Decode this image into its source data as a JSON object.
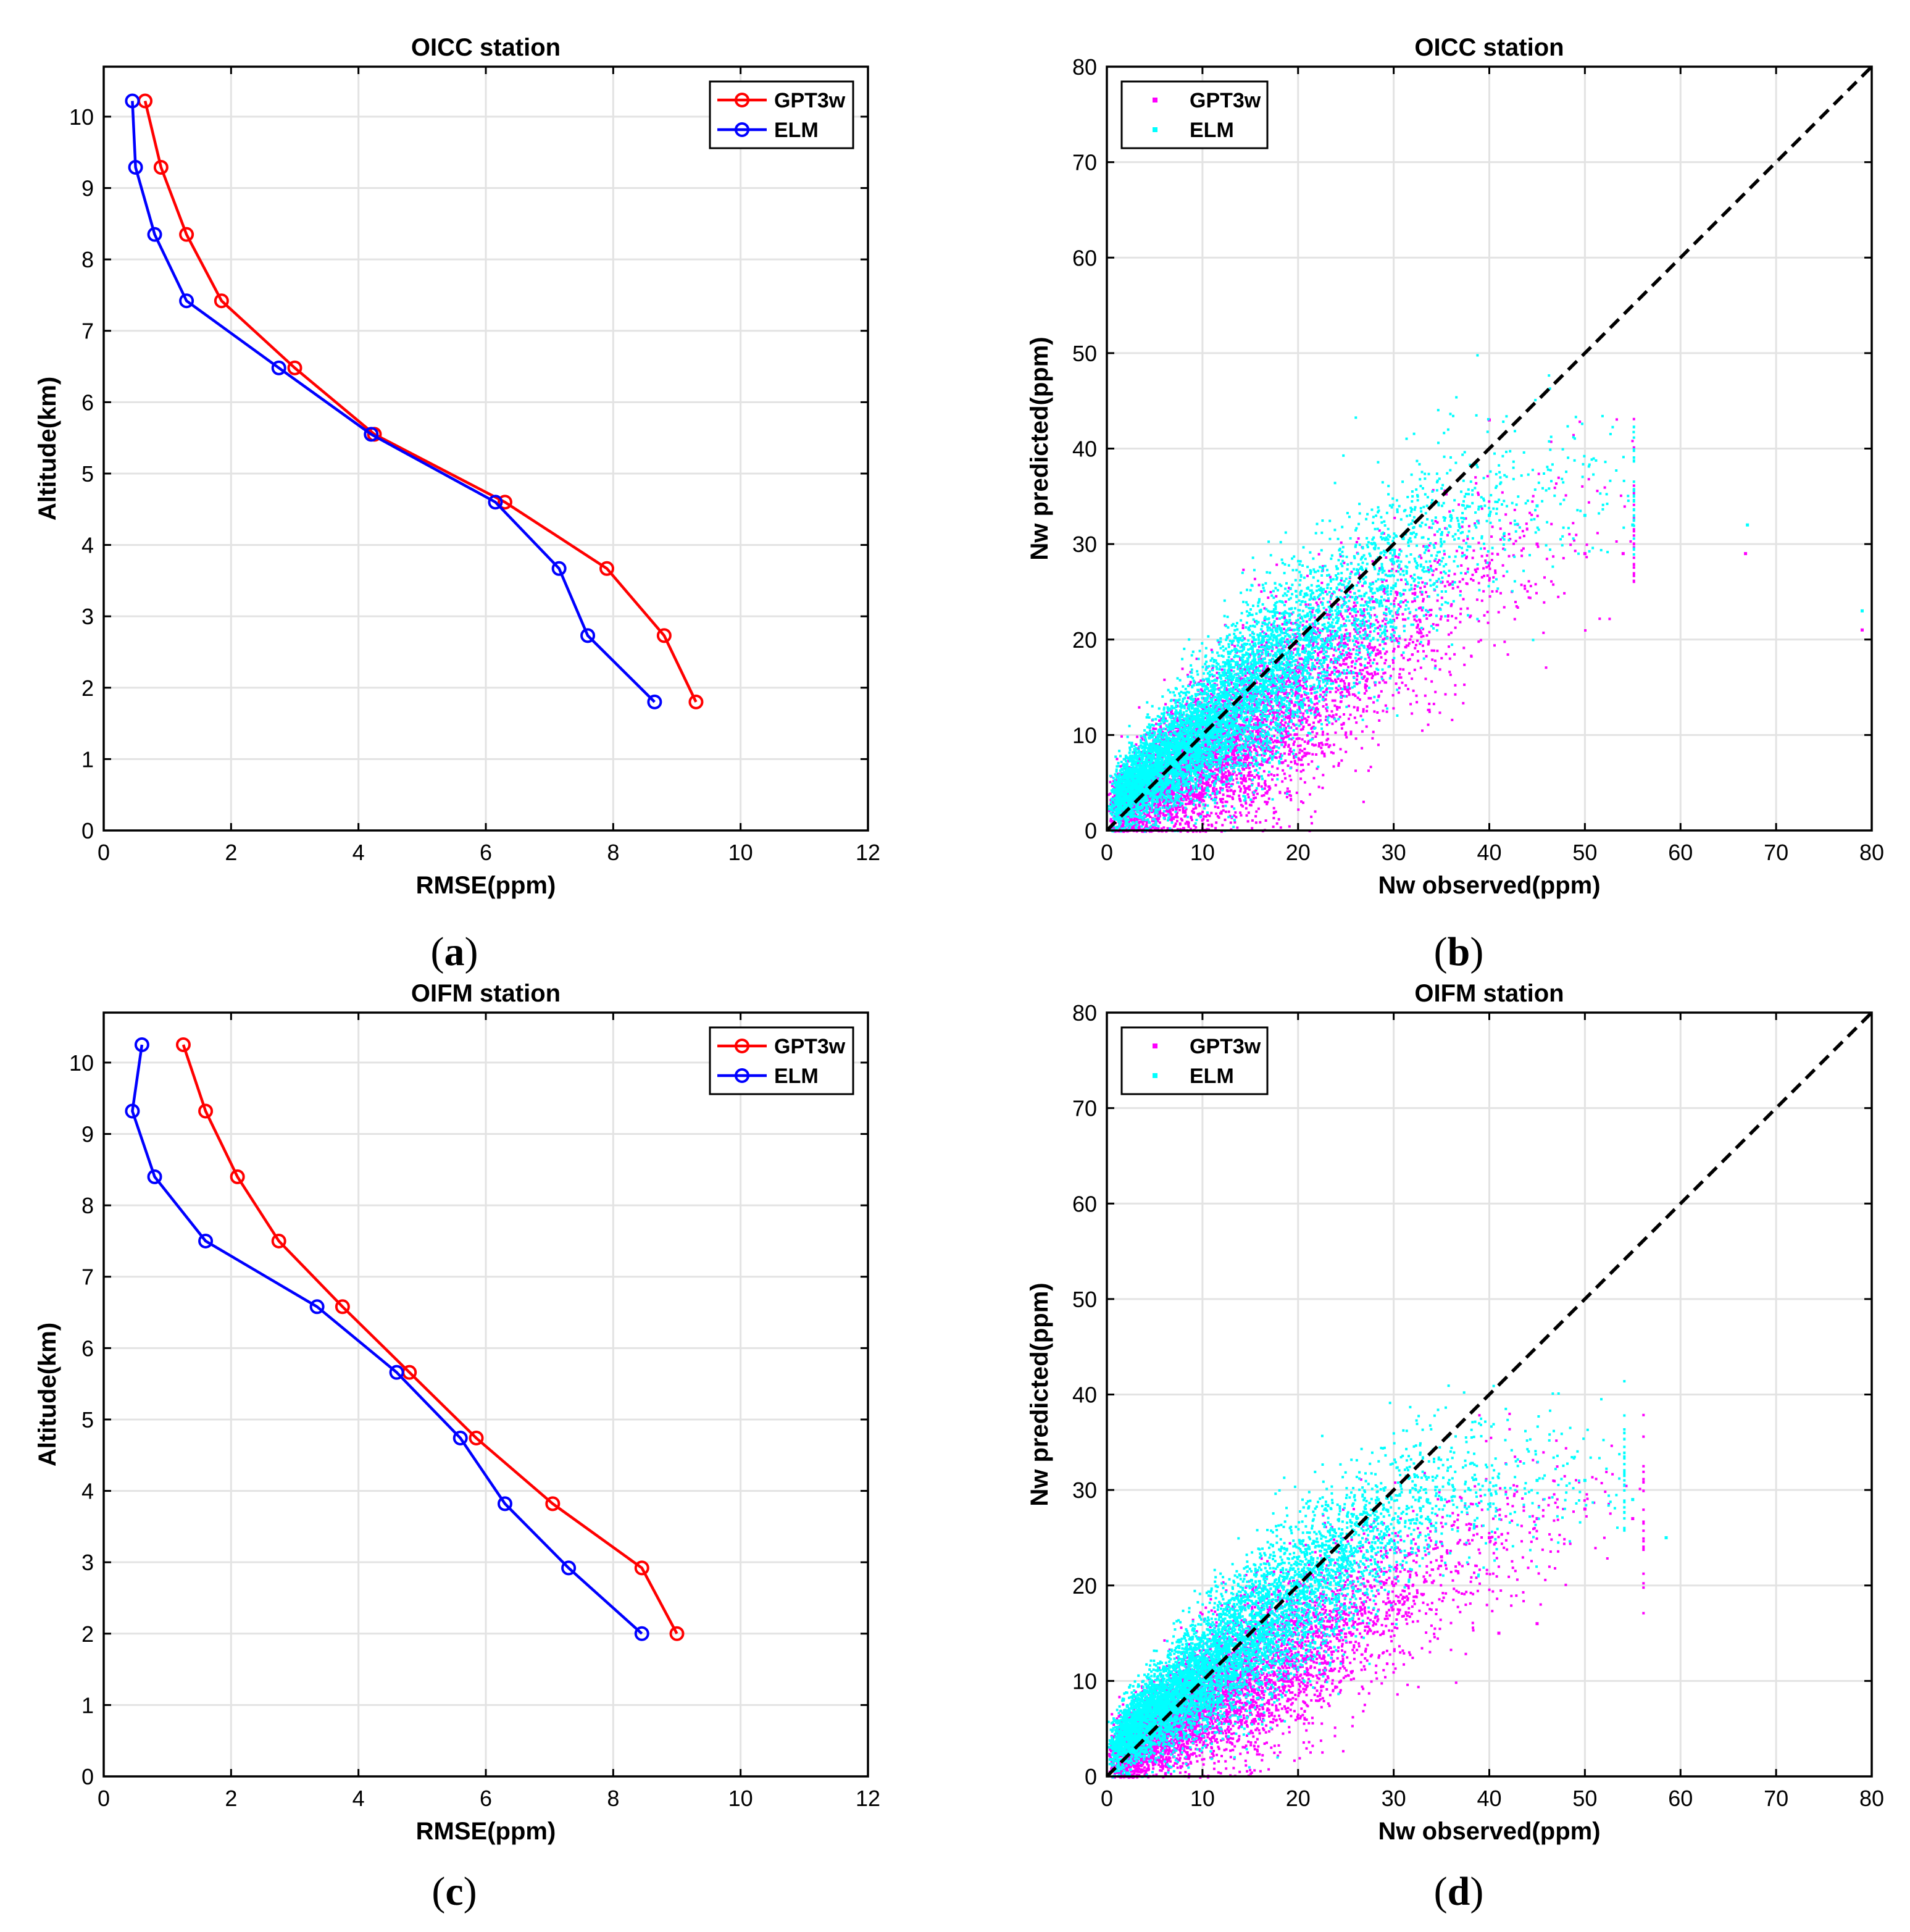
{
  "colors": {
    "gpt3w": "#ff0000",
    "elm": "#0000ff",
    "gpt3w_scatter": "#ff00ff",
    "elm_scatter": "#00ffff",
    "grid": "#e3e3e3",
    "axis": "#000000",
    "diagonal": "#000000"
  },
  "chart_data": [
    {
      "id": "a",
      "panel_label": "(a)",
      "panel_letter": "a",
      "type": "line",
      "title": "OICC station",
      "xlabel": "RMSE(ppm)",
      "ylabel": "Altitude(km)",
      "xlim": [
        0,
        12
      ],
      "ylim": [
        0,
        10.7
      ],
      "xticks": [
        0,
        2,
        4,
        6,
        8,
        10,
        12
      ],
      "yticks": [
        0,
        1,
        2,
        3,
        4,
        5,
        6,
        7,
        8,
        9,
        10
      ],
      "grid": true,
      "legend_position": "top-right",
      "series": [
        {
          "name": "GPT3w",
          "marker": "circle",
          "points": [
            [
              0.65,
              10.22
            ],
            [
              0.9,
              9.29
            ],
            [
              1.3,
              8.35
            ],
            [
              1.85,
              7.42
            ],
            [
              3.0,
              6.48
            ],
            [
              4.25,
              5.55
            ],
            [
              6.3,
              4.6
            ],
            [
              7.9,
              3.67
            ],
            [
              8.8,
              2.73
            ],
            [
              9.3,
              1.8
            ]
          ]
        },
        {
          "name": "ELM",
          "marker": "circle",
          "points": [
            [
              0.45,
              10.22
            ],
            [
              0.5,
              9.29
            ],
            [
              0.8,
              8.35
            ],
            [
              1.3,
              7.42
            ],
            [
              2.75,
              6.48
            ],
            [
              4.2,
              5.55
            ],
            [
              6.15,
              4.6
            ],
            [
              7.15,
              3.67
            ],
            [
              7.6,
              2.73
            ],
            [
              8.65,
              1.8
            ]
          ]
        }
      ]
    },
    {
      "id": "b",
      "panel_label": "(b)",
      "panel_letter": "b",
      "type": "scatter",
      "title": "OICC station",
      "xlabel": "Nw observed(ppm)",
      "ylabel": "Nw predicted(ppm)",
      "xlim": [
        0,
        80
      ],
      "ylim": [
        0,
        80
      ],
      "xticks": [
        0,
        10,
        20,
        30,
        40,
        50,
        60,
        70,
        80
      ],
      "yticks": [
        0,
        10,
        20,
        30,
        40,
        50,
        60,
        70,
        80
      ],
      "grid": true,
      "legend_position": "top-left",
      "reference_line": "1:1 dashed",
      "series": [
        {
          "name": "GPT3w",
          "description": "dense cloud, roughly y = 0.65x + 2, saturating near 30-33 ppm above x = 40",
          "sample_points": [
            [
              5,
              5
            ],
            [
              10,
              8
            ],
            [
              15,
              11
            ],
            [
              20,
              15
            ],
            [
              25,
              18
            ],
            [
              30,
              22
            ],
            [
              35,
              26
            ],
            [
              40,
              28
            ],
            [
              45,
              30
            ],
            [
              50,
              29
            ],
            [
              54,
              29
            ],
            [
              66.8,
              29
            ],
            [
              79,
              21
            ],
            [
              40,
              43
            ]
          ]
        },
        {
          "name": "ELM",
          "description": "dense cloud, roughly y = 0.8x + 2, saturating near 33-37 ppm above x = 40",
          "sample_points": [
            [
              5,
              6
            ],
            [
              10,
              10
            ],
            [
              15,
              14
            ],
            [
              20,
              19
            ],
            [
              25,
              23
            ],
            [
              30,
              28
            ],
            [
              35,
              31
            ],
            [
              40,
              33
            ],
            [
              45,
              34
            ],
            [
              50,
              33
            ],
            [
              55,
              32
            ],
            [
              67,
              32
            ],
            [
              79,
              23
            ]
          ]
        }
      ]
    },
    {
      "id": "c",
      "panel_label": "(c)",
      "panel_letter": "c",
      "type": "line",
      "title": "OIFM station",
      "xlabel": "RMSE(ppm)",
      "ylabel": "Altitude(km)",
      "xlim": [
        0,
        12
      ],
      "ylim": [
        0,
        10.7
      ],
      "xticks": [
        0,
        2,
        4,
        6,
        8,
        10,
        12
      ],
      "yticks": [
        0,
        1,
        2,
        3,
        4,
        5,
        6,
        7,
        8,
        9,
        10
      ],
      "grid": true,
      "legend_position": "top-right",
      "series": [
        {
          "name": "GPT3w",
          "marker": "circle",
          "points": [
            [
              1.25,
              10.25
            ],
            [
              1.6,
              9.32
            ],
            [
              2.1,
              8.4
            ],
            [
              2.75,
              7.5
            ],
            [
              3.75,
              6.58
            ],
            [
              4.8,
              5.66
            ],
            [
              5.85,
              4.74
            ],
            [
              7.05,
              3.82
            ],
            [
              8.45,
              2.92
            ],
            [
              9.0,
              2.0
            ]
          ]
        },
        {
          "name": "ELM",
          "marker": "circle",
          "points": [
            [
              0.6,
              10.25
            ],
            [
              0.45,
              9.32
            ],
            [
              0.8,
              8.4
            ],
            [
              1.6,
              7.5
            ],
            [
              3.35,
              6.58
            ],
            [
              4.6,
              5.66
            ],
            [
              5.6,
              4.74
            ],
            [
              6.3,
              3.82
            ],
            [
              7.3,
              2.92
            ],
            [
              8.45,
              2.0
            ]
          ]
        }
      ]
    },
    {
      "id": "d",
      "panel_label": "(d)",
      "panel_letter": "d",
      "type": "scatter",
      "title": "OIFM station",
      "xlabel": "Nw observed(ppm)",
      "ylabel": "Nw predicted(ppm)",
      "xlim": [
        0,
        80
      ],
      "ylim": [
        0,
        80
      ],
      "xticks": [
        0,
        10,
        20,
        30,
        40,
        50,
        60,
        70,
        80
      ],
      "yticks": [
        0,
        10,
        20,
        30,
        40,
        50,
        60,
        70,
        80
      ],
      "grid": true,
      "legend_position": "top-left",
      "reference_line": "1:1 dashed",
      "series": [
        {
          "name": "GPT3w",
          "description": "dense cloud, roughly y = 0.6x + 2, saturating near 26-29 ppm above x = 35",
          "sample_points": [
            [
              5,
              5
            ],
            [
              10,
              8
            ],
            [
              15,
              11
            ],
            [
              20,
              14
            ],
            [
              25,
              17
            ],
            [
              30,
              20
            ],
            [
              35,
              23
            ],
            [
              40,
              25
            ],
            [
              45,
              27
            ],
            [
              50,
              28
            ],
            [
              55,
              27
            ],
            [
              41,
              15
            ],
            [
              45,
              16
            ]
          ]
        },
        {
          "name": "ELM",
          "description": "dense cloud, roughly y = 0.8x + 3, saturating near 28-32 ppm above x = 30",
          "sample_points": [
            [
              5,
              7
            ],
            [
              10,
              11
            ],
            [
              15,
              15
            ],
            [
              20,
              20
            ],
            [
              25,
              24
            ],
            [
              30,
              27
            ],
            [
              35,
              29
            ],
            [
              40,
              30
            ],
            [
              45,
              31
            ],
            [
              50,
              31
            ],
            [
              55,
              29
            ],
            [
              58.5,
              25
            ]
          ]
        }
      ]
    }
  ]
}
